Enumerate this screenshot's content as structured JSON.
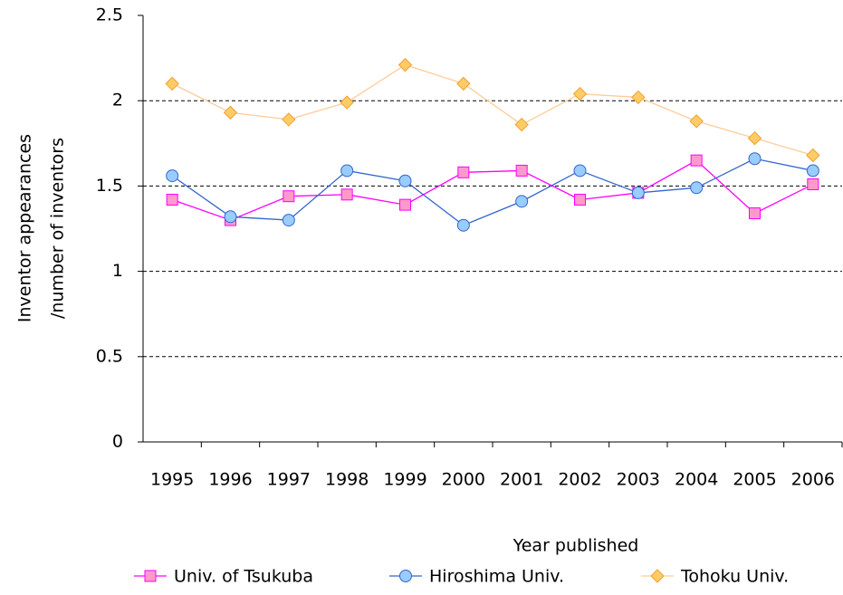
{
  "chart_data": {
    "type": "line",
    "ylabel": [
      "Inventor appearances",
      "/number of inventors"
    ],
    "xlabel": "Year published",
    "categories": [
      "1995",
      "1996",
      "1997",
      "1998",
      "1999",
      "2000",
      "2001",
      "2002",
      "2003",
      "2004",
      "2005",
      "2006"
    ],
    "series": [
      {
        "name": "Univ. of Tsukuba",
        "color": "#ff00ff",
        "marker": "square",
        "marker_fill": "#ff99cc",
        "values": [
          1.42,
          1.3,
          1.44,
          1.45,
          1.39,
          1.58,
          1.59,
          1.42,
          1.46,
          1.65,
          1.34,
          1.51
        ]
      },
      {
        "name": "Hiroshima Univ.",
        "color": "#3366cc",
        "marker": "circle",
        "marker_fill": "#99ccff",
        "values": [
          1.56,
          1.32,
          1.3,
          1.59,
          1.53,
          1.27,
          1.41,
          1.59,
          1.46,
          1.49,
          1.66,
          1.59
        ]
      },
      {
        "name": "Tohoku Univ.",
        "color": "#ffcc99",
        "marker": "diamond",
        "marker_fill": "#ffcc66",
        "values": [
          2.1,
          1.93,
          1.89,
          1.99,
          2.21,
          2.1,
          1.86,
          2.04,
          2.02,
          1.88,
          1.78,
          1.68
        ]
      }
    ],
    "ylim": [
      0,
      2.5
    ],
    "yticks": [
      0,
      0.5,
      1,
      1.5,
      2,
      2.5
    ],
    "grid": true,
    "legend": "bottom"
  }
}
